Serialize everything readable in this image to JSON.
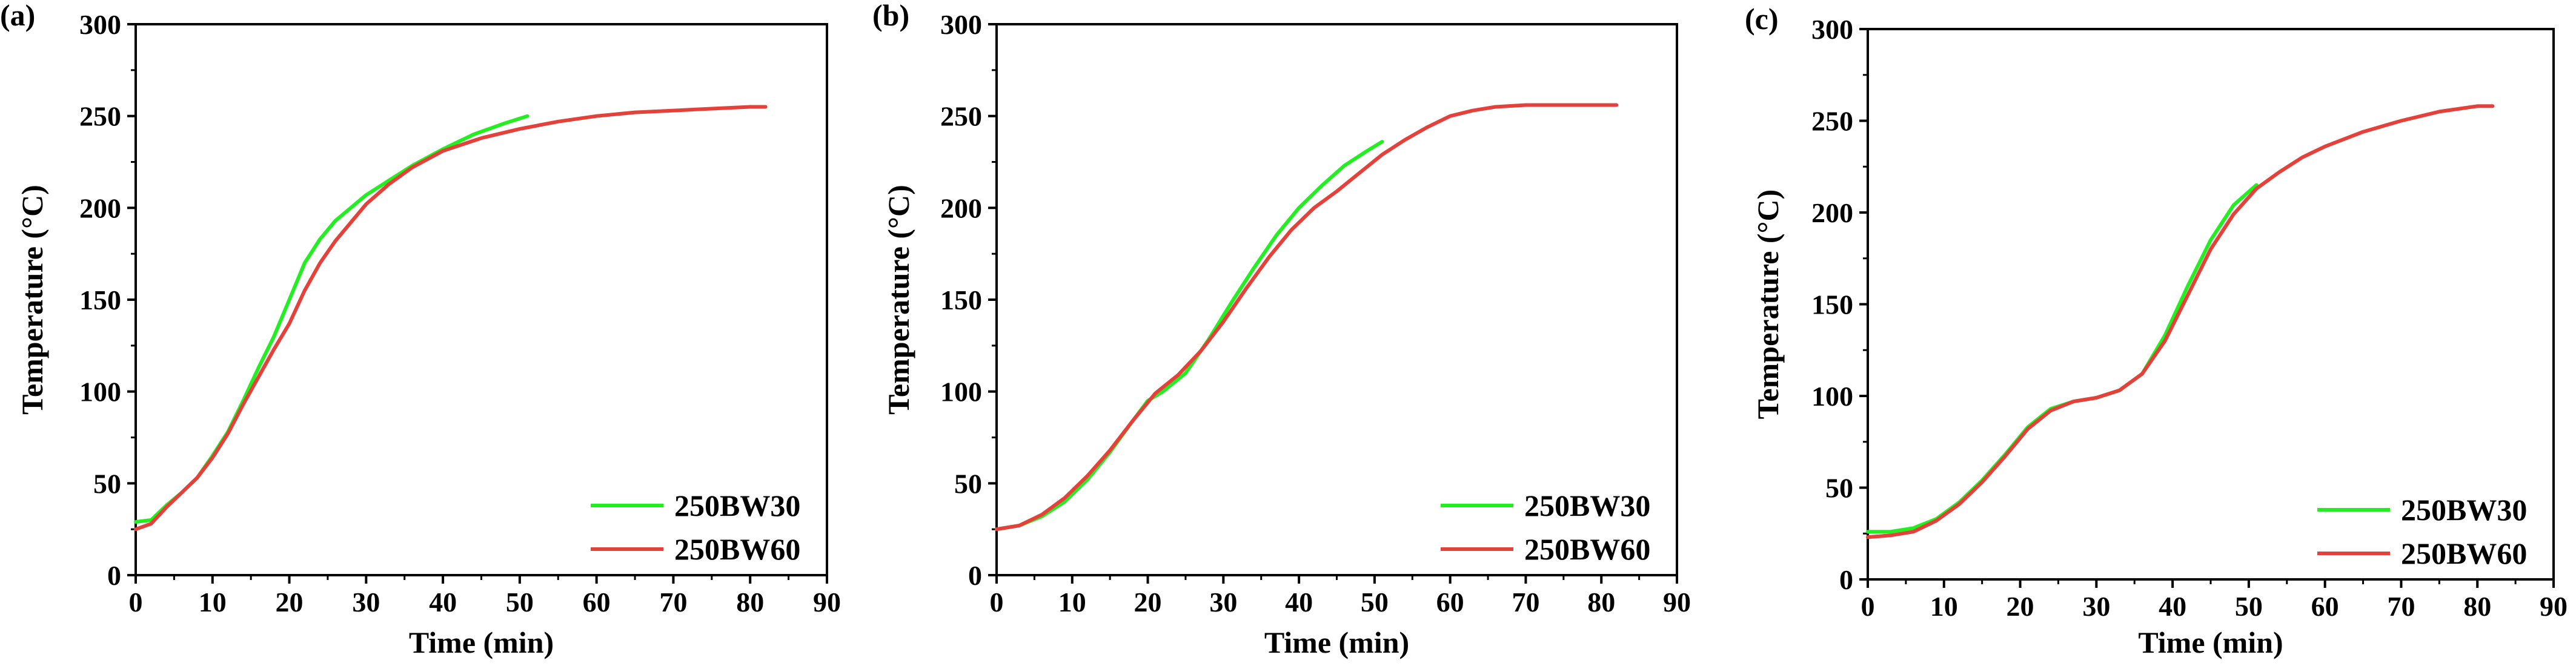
{
  "colors": {
    "series_1": "#22ee22",
    "series_2": "#e5413b",
    "axis": "#000000"
  },
  "chart_data": [
    {
      "type": "line",
      "panel_label": "(a)",
      "xlabel": "Time (min)",
      "ylabel": "Temperature (°C)",
      "xlim": [
        0,
        90
      ],
      "ylim": [
        0,
        300
      ],
      "xticks": [
        0,
        10,
        20,
        30,
        40,
        50,
        60,
        70,
        80,
        90
      ],
      "yticks": [
        0,
        50,
        100,
        150,
        200,
        250,
        300
      ],
      "grid": false,
      "legend_position": "bottom-right",
      "series": [
        {
          "name": "250BW30",
          "color": "#22ee22",
          "x": [
            0,
            2,
            4,
            6,
            8,
            10,
            12,
            14,
            16,
            18,
            20,
            22,
            24,
            26,
            28,
            30,
            33,
            36,
            40,
            44,
            48,
            51
          ],
          "y": [
            29,
            30,
            38,
            45,
            53,
            65,
            78,
            95,
            113,
            130,
            150,
            170,
            183,
            193,
            200,
            207,
            215,
            223,
            232,
            240,
            246,
            250
          ]
        },
        {
          "name": "250BW60",
          "color": "#e5413b",
          "x": [
            0,
            2,
            4,
            6,
            8,
            10,
            12,
            14,
            16,
            18,
            20,
            22,
            24,
            26,
            28,
            30,
            33,
            36,
            40,
            45,
            50,
            55,
            60,
            65,
            70,
            75,
            80,
            82
          ],
          "y": [
            25,
            28,
            37,
            45,
            53,
            64,
            77,
            93,
            108,
            123,
            137,
            155,
            170,
            182,
            192,
            202,
            213,
            222,
            231,
            238,
            243,
            247,
            250,
            252,
            253,
            254,
            255,
            255
          ]
        }
      ]
    },
    {
      "type": "line",
      "panel_label": "(b)",
      "xlabel": "Time (min)",
      "ylabel": "Temperature (°C)",
      "xlim": [
        0,
        90
      ],
      "ylim": [
        0,
        300
      ],
      "xticks": [
        0,
        10,
        20,
        30,
        40,
        50,
        60,
        70,
        80,
        90
      ],
      "yticks": [
        0,
        50,
        100,
        150,
        200,
        250,
        300
      ],
      "grid": false,
      "legend_position": "bottom-right",
      "series": [
        {
          "name": "250BW30",
          "color": "#22ee22",
          "x": [
            0,
            3,
            6,
            9,
            12,
            15,
            18,
            20,
            22,
            25,
            28,
            31,
            34,
            37,
            40,
            43,
            46,
            49,
            51
          ],
          "y": [
            25,
            27,
            32,
            40,
            52,
            67,
            84,
            95,
            100,
            110,
            128,
            148,
            167,
            185,
            200,
            212,
            223,
            231,
            236
          ]
        },
        {
          "name": "250BW60",
          "color": "#e5413b",
          "x": [
            0,
            3,
            6,
            9,
            12,
            15,
            18,
            21,
            24,
            27,
            30,
            33,
            36,
            39,
            42,
            45,
            48,
            51,
            54,
            57,
            60,
            63,
            66,
            70,
            75,
            80,
            82
          ],
          "y": [
            25,
            27,
            33,
            42,
            54,
            68,
            84,
            99,
            109,
            122,
            138,
            156,
            173,
            188,
            200,
            209,
            219,
            229,
            237,
            244,
            250,
            253,
            255,
            256,
            256,
            256,
            256
          ]
        }
      ]
    },
    {
      "type": "line",
      "panel_label": "(c)",
      "xlabel": "Time (min)",
      "ylabel": "Temperature (°C)",
      "xlim": [
        0,
        90
      ],
      "ylim": [
        0,
        300
      ],
      "xticks": [
        0,
        10,
        20,
        30,
        40,
        50,
        60,
        70,
        80,
        90
      ],
      "yticks": [
        0,
        50,
        100,
        150,
        200,
        250,
        300
      ],
      "grid": false,
      "legend_position": "bottom-right",
      "series": [
        {
          "name": "250BW30",
          "color": "#22ee22",
          "x": [
            0,
            3,
            6,
            9,
            12,
            15,
            18,
            21,
            24,
            27,
            30,
            33,
            36,
            39,
            42,
            45,
            48,
            51
          ],
          "y": [
            26,
            26,
            28,
            33,
            42,
            54,
            68,
            83,
            93,
            97,
            99,
            103,
            112,
            133,
            160,
            185,
            204,
            215
          ]
        },
        {
          "name": "250BW60",
          "color": "#e5413b",
          "x": [
            0,
            3,
            6,
            9,
            12,
            15,
            18,
            21,
            24,
            27,
            30,
            33,
            36,
            39,
            42,
            45,
            48,
            51,
            54,
            57,
            60,
            65,
            70,
            75,
            80,
            82
          ],
          "y": [
            23,
            24,
            26,
            32,
            41,
            53,
            67,
            82,
            92,
            97,
            99,
            103,
            112,
            130,
            155,
            180,
            199,
            213,
            222,
            230,
            236,
            244,
            250,
            255,
            258,
            258
          ]
        }
      ]
    }
  ]
}
